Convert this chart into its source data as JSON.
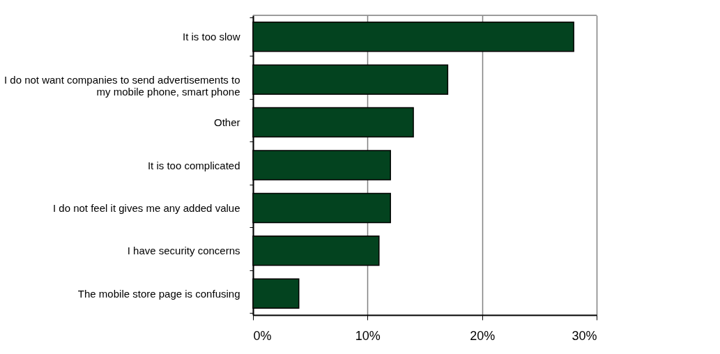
{
  "chart_data": {
    "type": "bar",
    "orientation": "horizontal",
    "categories": [
      "It is too slow",
      "I do not want companies to send advertisements to my mobile phone, smart phone",
      "Other",
      "It is too complicated",
      "I do not feel it gives me any added value",
      "I have security concerns",
      "The mobile store page is confusing"
    ],
    "values": [
      28,
      17,
      14,
      12,
      12,
      11,
      4
    ],
    "color": "#03431f",
    "xlim": [
      0,
      30
    ],
    "xticks": [
      {
        "value": 0,
        "label": "0%"
      },
      {
        "value": 10,
        "label": "10%"
      },
      {
        "value": 20,
        "label": "20%"
      },
      {
        "value": 30,
        "label": "30%"
      }
    ],
    "grid": "x"
  }
}
